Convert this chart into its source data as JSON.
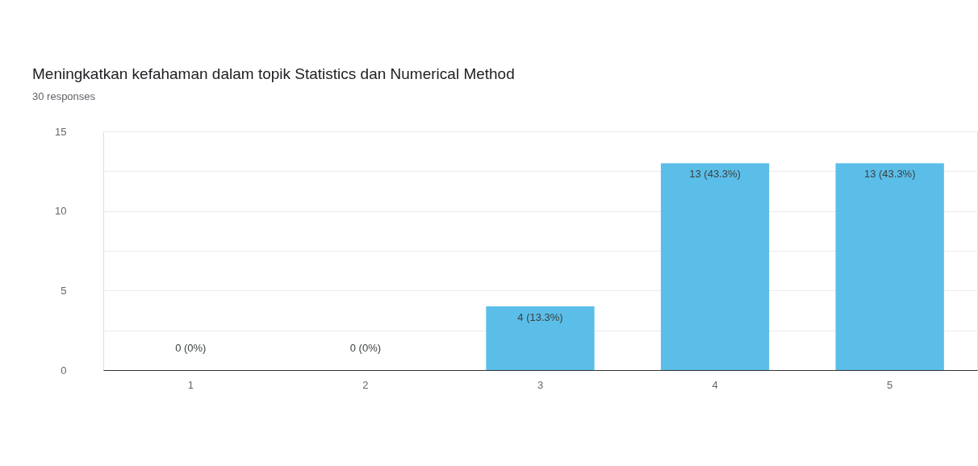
{
  "chart_data": {
    "type": "bar",
    "title": "Meningkatkan kefahaman dalam topik Statistics dan Numerical Method",
    "subtitle": "30 responses",
    "categories": [
      "1",
      "2",
      "3",
      "4",
      "5"
    ],
    "values": [
      0,
      0,
      4,
      13,
      13
    ],
    "color": "#5bbee8",
    "value_labels": [
      "0 (0%)",
      "0 (0%)",
      "4 (13.3%)",
      "13 (43.3%)",
      "13 (43.3%)"
    ],
    "ylim": [
      0,
      15
    ],
    "yticks": [
      0,
      {
        "value": 2.5,
        "label": null
      },
      5,
      {
        "value": 7.5,
        "label": null
      },
      10,
      {
        "value": 12.5,
        "label": null
      },
      15
    ],
    "grid": "y"
  }
}
